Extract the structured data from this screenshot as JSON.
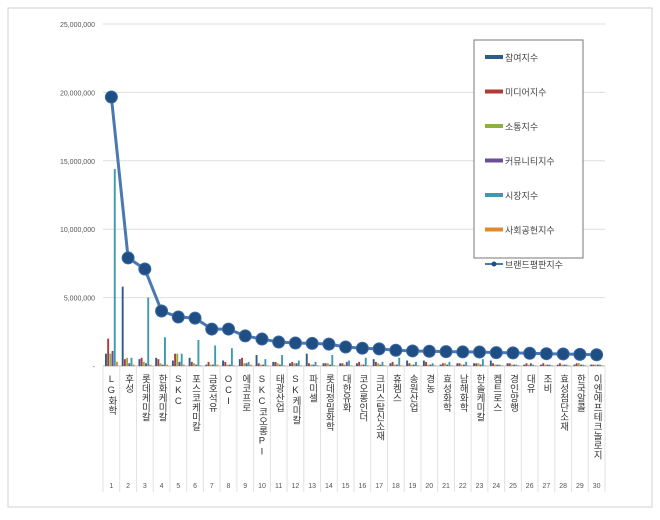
{
  "chart_data": {
    "type": "bar+line",
    "title": "",
    "xlabel": "",
    "ylabel": "",
    "ylim": [
      0,
      25000000
    ],
    "yticks": [
      "-",
      "5,000,000",
      "10,000,000",
      "15,000,000",
      "20,000,000",
      "25,000,000"
    ],
    "ytick_values": [
      0,
      5000000,
      10000000,
      15000000,
      20000000,
      25000000
    ],
    "grid": true,
    "legend_position": "top-right",
    "ranks": [
      "1",
      "2",
      "3",
      "4",
      "5",
      "6",
      "7",
      "8",
      "9",
      "10",
      "11",
      "12",
      "13",
      "14",
      "15",
      "16",
      "17",
      "18",
      "19",
      "20",
      "21",
      "22",
      "23",
      "24",
      "25",
      "26",
      "27",
      "28",
      "29",
      "30"
    ],
    "categories": [
      "LG화학",
      "후성",
      "롯데케미칼",
      "한화케미칼",
      "SKC",
      "포스코케미칼",
      "금호석유",
      "OCI",
      "에코프로",
      "SKC코오롱PI",
      "태광산업",
      "SK케미칼",
      "파미셀",
      "롯데정밀화학",
      "대한유화",
      "코오롱인더",
      "크리스탈신소재",
      "휴켐스",
      "송원산업",
      "경농",
      "효성화학",
      "남해화학",
      "한솔케미칼",
      "켐트로스",
      "경인양행",
      "대유",
      "조비",
      "효성첨단소재",
      "한국알콜",
      "이엔에프테크놀로지"
    ],
    "series": [
      {
        "name": "참여지수",
        "type": "bar",
        "color": "#2E5C8A",
        "values": [
          900000,
          5800000,
          500000,
          600000,
          400000,
          600000,
          100000,
          400000,
          500000,
          800000,
          300000,
          200000,
          900000,
          200000,
          200000,
          200000,
          500000,
          200000,
          400000,
          400000,
          100000,
          200000,
          200000,
          400000,
          200000,
          100000,
          100000,
          100000,
          100000,
          100000
        ]
      },
      {
        "name": "미디어지수",
        "type": "bar",
        "color": "#B23A36",
        "values": [
          2000000,
          500000,
          600000,
          500000,
          900000,
          300000,
          300000,
          300000,
          600000,
          200000,
          300000,
          300000,
          200000,
          200000,
          200000,
          300000,
          300000,
          300000,
          200000,
          300000,
          200000,
          200000,
          200000,
          200000,
          200000,
          200000,
          200000,
          200000,
          200000,
          100000
        ]
      },
      {
        "name": "소통지수",
        "type": "bar",
        "color": "#8FB040",
        "values": [
          900000,
          600000,
          300000,
          200000,
          900000,
          200000,
          100000,
          100000,
          200000,
          100000,
          200000,
          200000,
          100000,
          200000,
          100000,
          100000,
          200000,
          100000,
          100000,
          100000,
          200000,
          100000,
          200000,
          100000,
          100000,
          100000,
          100000,
          100000,
          200000,
          100000
        ]
      },
      {
        "name": "커뮤니티지수",
        "type": "bar",
        "color": "#6B4F95",
        "values": [
          1100000,
          200000,
          200000,
          100000,
          300000,
          100000,
          100000,
          100000,
          200000,
          100000,
          100000,
          200000,
          100000,
          100000,
          300000,
          100000,
          100000,
          100000,
          100000,
          100000,
          100000,
          100000,
          100000,
          100000,
          100000,
          200000,
          100000,
          100000,
          100000,
          100000
        ]
      },
      {
        "name": "시장지수",
        "type": "bar",
        "color": "#3E9BAE",
        "values": [
          14400000,
          600000,
          5000000,
          2100000,
          900000,
          1900000,
          1500000,
          1300000,
          300000,
          500000,
          800000,
          400000,
          300000,
          800000,
          400000,
          600000,
          300000,
          600000,
          300000,
          200000,
          300000,
          300000,
          500000,
          100000,
          100000,
          100000,
          100000,
          100000,
          100000,
          100000
        ]
      },
      {
        "name": "사회공헌지수",
        "type": "bar",
        "color": "#E08A2E",
        "values": [
          300000,
          100000,
          100000,
          100000,
          100000,
          50000,
          100000,
          50000,
          100000,
          50000,
          50000,
          50000,
          50000,
          50000,
          50000,
          50000,
          50000,
          50000,
          50000,
          50000,
          50000,
          50000,
          50000,
          50000,
          50000,
          50000,
          50000,
          50000,
          50000,
          50000
        ]
      },
      {
        "name": "브랜드평판지수",
        "type": "line",
        "color": "#2E5C8A",
        "values": [
          19660000,
          7900000,
          7090000,
          4020000,
          3580000,
          3500000,
          2700000,
          2700000,
          2200000,
          1970000,
          1750000,
          1680000,
          1650000,
          1600000,
          1390000,
          1300000,
          1250000,
          1150000,
          1100000,
          1080000,
          1050000,
          1030000,
          1020000,
          980000,
          960000,
          930000,
          900000,
          880000,
          850000,
          820000
        ]
      }
    ]
  }
}
